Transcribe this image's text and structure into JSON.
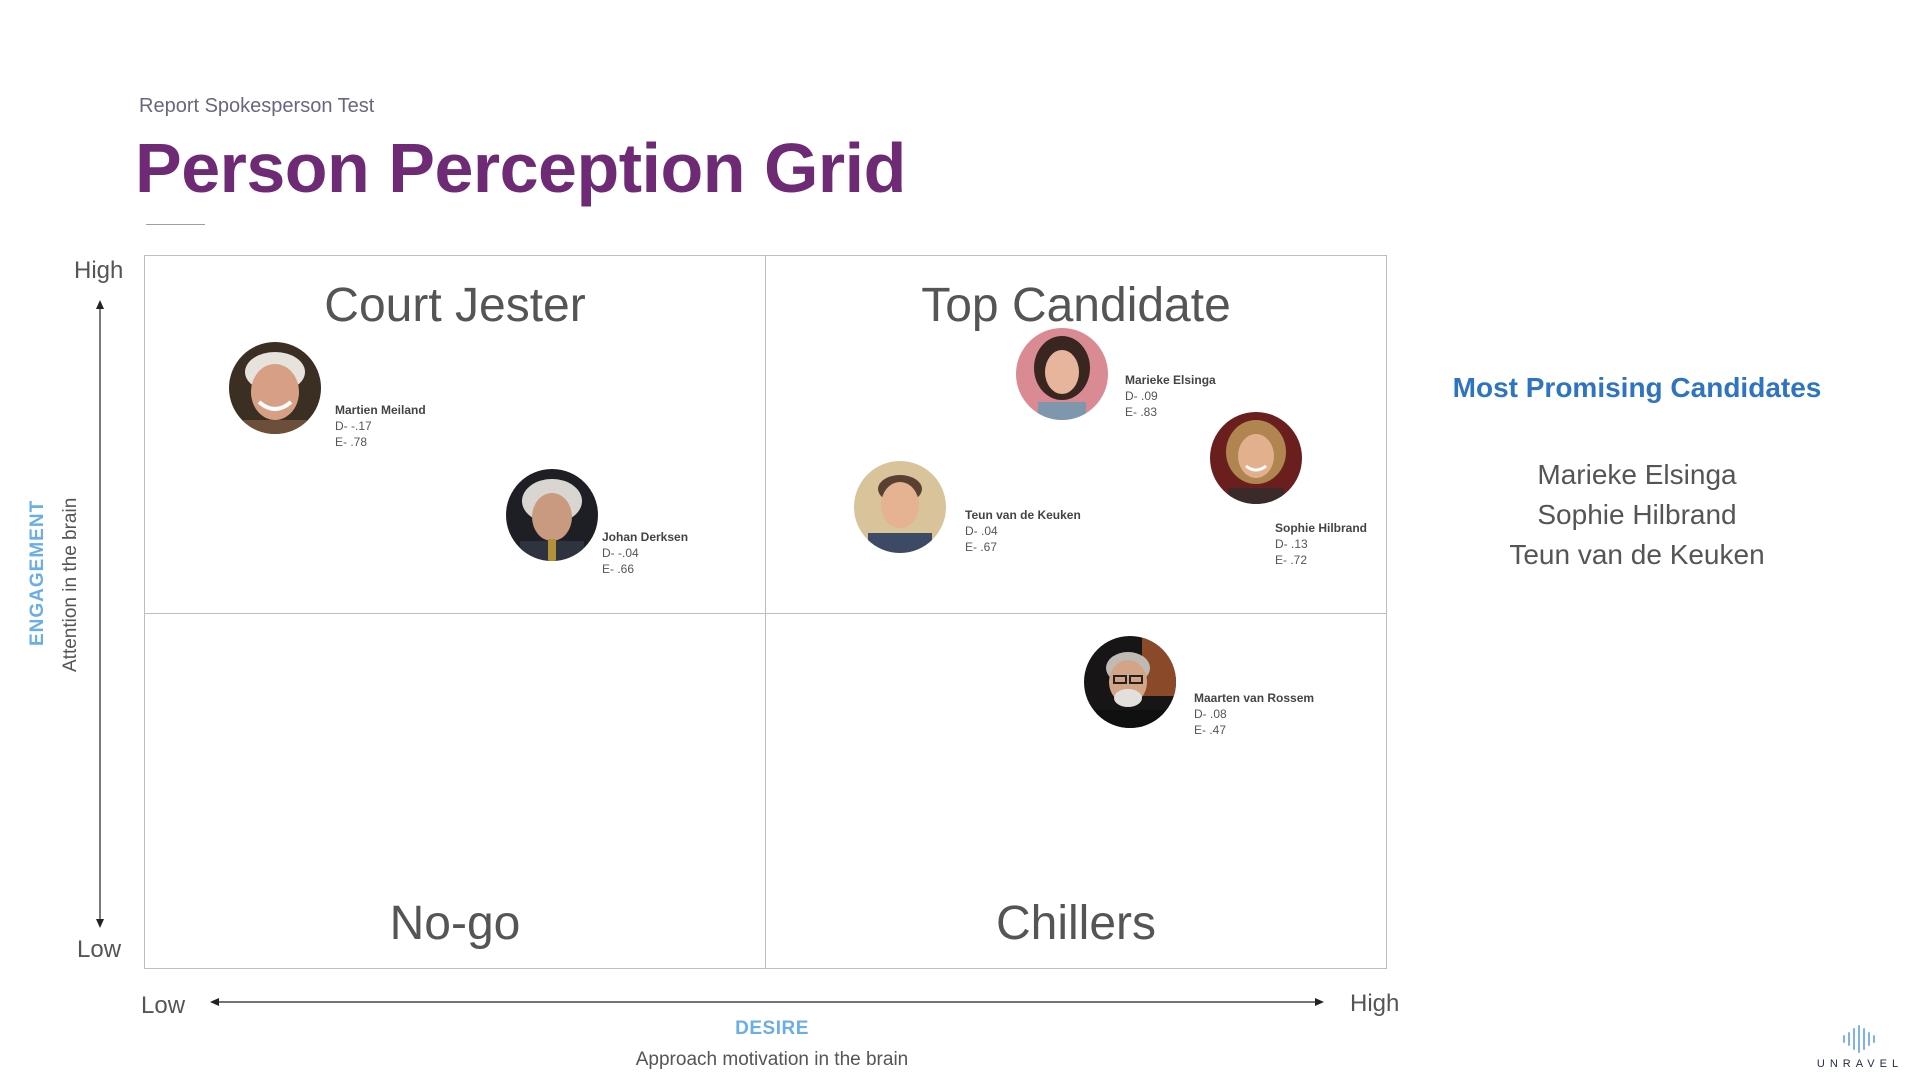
{
  "header": {
    "kicker": "Report Spokesperson Test",
    "title": "Person Perception Grid"
  },
  "quadrants": {
    "top_left": "Court Jester",
    "top_right": "Top Candidate",
    "bottom_left": "No-go",
    "bottom_right": "Chillers"
  },
  "y_axis": {
    "high": "High",
    "low": "Low",
    "title": "ENGAGEMENT",
    "subtitle": "Attention in the brain"
  },
  "x_axis": {
    "low": "Low",
    "high": "High",
    "title": "DESIRE",
    "subtitle": "Approach motivation in the brain"
  },
  "people": [
    {
      "name": "Martien Meiland",
      "d": "D- -.17",
      "e": "E- .78"
    },
    {
      "name": "Johan Derksen",
      "d": "D- -.04",
      "e": "E- .66"
    },
    {
      "name": "Marieke Elsinga",
      "d": "D- .09",
      "e": "E- .83"
    },
    {
      "name": "Teun van de Keuken",
      "d": "D- .04",
      "e": "E- .67"
    },
    {
      "name": "Sophie Hilbrand",
      "d": "D- .13",
      "e": "E- .72"
    },
    {
      "name": "Maarten van Rossem",
      "d": "D- .08",
      "e": "E- .47"
    }
  ],
  "sidebar": {
    "title": "Most Promising Candidates",
    "candidates": [
      "Marieke Elsinga",
      "Sophie Hilbrand",
      "Teun van de Keuken"
    ]
  },
  "logo": {
    "text": "UNRAVEL"
  },
  "colors": {
    "title": "#6e2a74",
    "axis_title": "#6aaee6",
    "sidebar_title": "#2f74c0"
  }
}
